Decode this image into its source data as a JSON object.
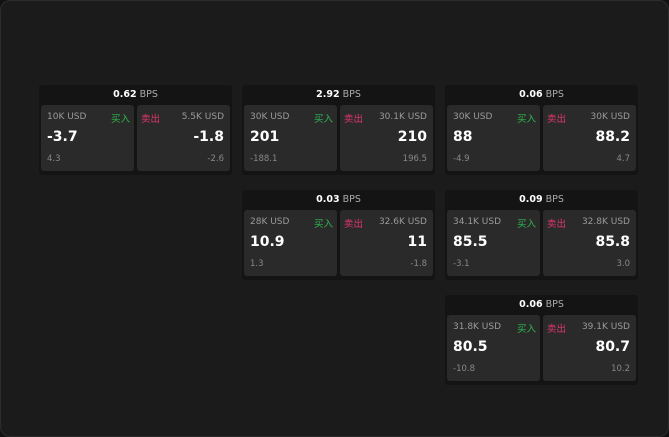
{
  "unit": "BPS",
  "buy_label": "买入",
  "sell_label": "卖出",
  "cards": [
    {
      "spread": "0.62",
      "buy": {
        "qty": "10K USD",
        "price": "-3.7",
        "change": "4.3"
      },
      "sell": {
        "qty": "5.5K USD",
        "price": "-1.8",
        "change": "-2.6"
      }
    },
    {
      "spread": "2.92",
      "buy": {
        "qty": "30K USD",
        "price": "201",
        "change": "-188.1"
      },
      "sell": {
        "qty": "30.1K USD",
        "price": "210",
        "change": "196.5"
      }
    },
    {
      "spread": "0.06",
      "buy": {
        "qty": "30K USD",
        "price": "88",
        "change": "-4.9"
      },
      "sell": {
        "qty": "30K USD",
        "price": "88.2",
        "change": "4.7"
      }
    },
    {
      "spread": "0.03",
      "buy": {
        "qty": "28K USD",
        "price": "10.9",
        "change": "1.3"
      },
      "sell": {
        "qty": "32.6K USD",
        "price": "11",
        "change": "-1.8"
      }
    },
    {
      "spread": "0.09",
      "buy": {
        "qty": "34.1K USD",
        "price": "85.5",
        "change": "-3.1"
      },
      "sell": {
        "qty": "32.8K USD",
        "price": "85.8",
        "change": "3.0"
      }
    },
    {
      "spread": "0.06",
      "buy": {
        "qty": "31.8K USD",
        "price": "80.5",
        "change": "-10.8"
      },
      "sell": {
        "qty": "39.1K USD",
        "price": "80.7",
        "change": "10.2"
      }
    }
  ]
}
